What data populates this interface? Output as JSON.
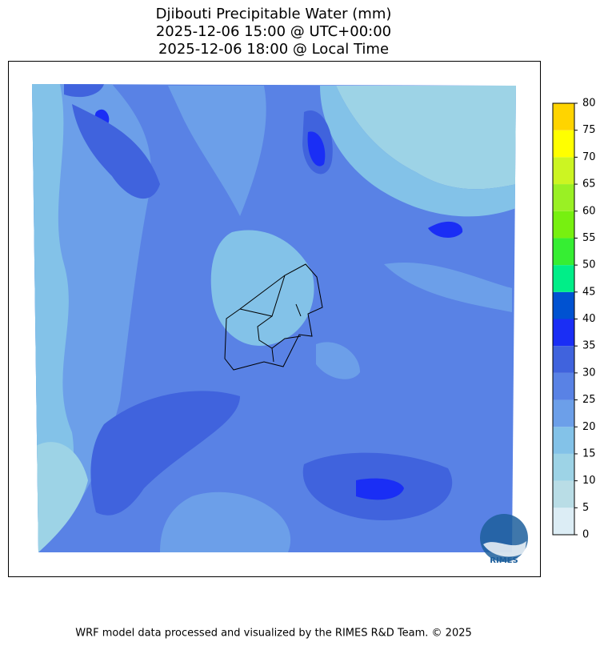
{
  "title": [
    "Djibouti Precipitable Water (mm)",
    "2025-12-06 15:00 @ UTC+00:00",
    "2025-12-06 18:00 @ Local Time"
  ],
  "colorbar": {
    "min": 0,
    "max": 80,
    "ticks": [
      0,
      5,
      10,
      15,
      20,
      25,
      30,
      35,
      40,
      45,
      50,
      55,
      60,
      65,
      70,
      75,
      80
    ],
    "colors": [
      "#dcedf5",
      "#b9dde6",
      "#9dd3e6",
      "#83c2e8",
      "#6c9fe9",
      "#5982e5",
      "#4063dd",
      "#1a2ef5",
      "#0052d1",
      "#00ee88",
      "#36ee33",
      "#77f010",
      "#9af024",
      "#ccf522",
      "#ffff00",
      "#ffd400"
    ]
  },
  "logo": "RIMES",
  "footer": "WRF model data processed and visualized by the RIMES R&D Team. © 2025"
}
